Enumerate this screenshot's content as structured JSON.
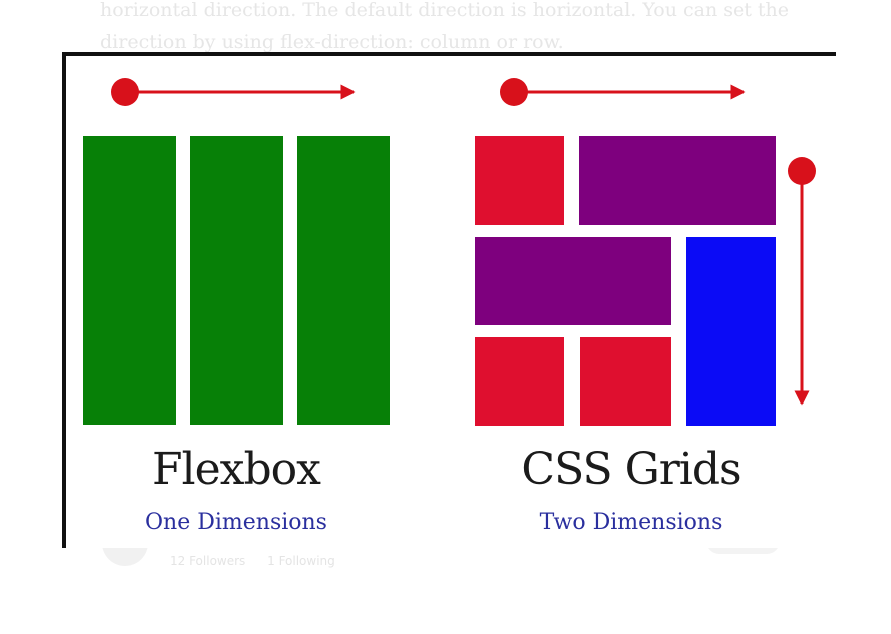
{
  "background_article": {
    "paragraph": "horizontal direction. The default direction is horizontal. You can set the direction by using flex-direction: column or row.",
    "followers": "12 Followers",
    "following": "1 Following"
  },
  "diagram": {
    "flexbox": {
      "title": "Flexbox",
      "subtitle": "One Dimensions"
    },
    "grid": {
      "title": "CSS Grids",
      "subtitle": "Two Dimensions"
    },
    "colors": {
      "green": "#078007",
      "red": "#df0f2f",
      "purple": "#7e007e",
      "blue": "#0b0bf6",
      "arrow": "#d8111b",
      "caption_subtitle": "#2a2f9e"
    }
  }
}
